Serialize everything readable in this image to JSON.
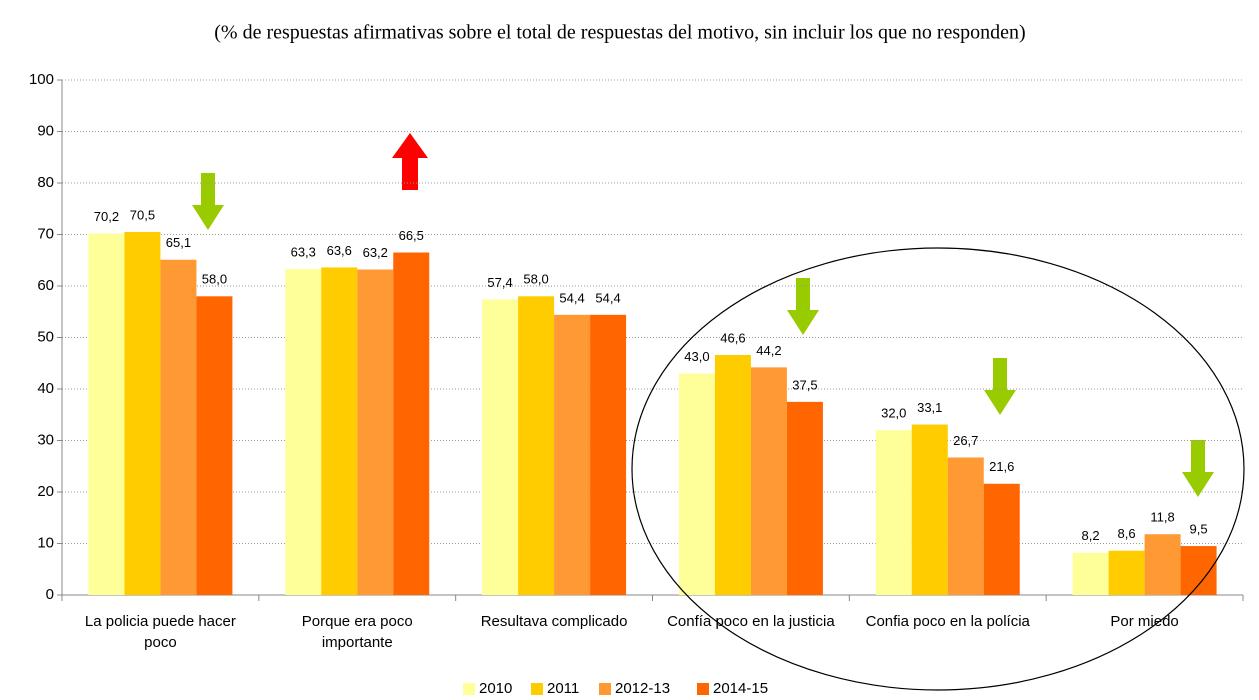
{
  "chart_data": {
    "type": "bar",
    "title": "(% de respuestas afirmativas sobre el total de respuestas del motivo, sin incluir los que no responden)",
    "categories": [
      "La policia puede hacer poco",
      "Porque era poco importante",
      "Resultava complicado",
      "Confía poco en la justicia",
      "Confia poco en la polícia",
      "Por miedo"
    ],
    "series": [
      {
        "name": "2010",
        "color": "#ffff99",
        "values": [
          70.2,
          63.3,
          57.4,
          43.0,
          32.0,
          8.2
        ],
        "value_labels": [
          "70,2",
          "63,3",
          "57,4",
          "43,0",
          "32,0",
          "8,2"
        ]
      },
      {
        "name": "2011",
        "color": "#ffcc00",
        "values": [
          70.5,
          63.6,
          58.0,
          46.6,
          33.1,
          8.6
        ],
        "value_labels": [
          "70,5",
          "63,6",
          "58,0",
          "46,6",
          "33,1",
          "8,6"
        ]
      },
      {
        "name": "2012-13",
        "color": "#ff9933",
        "values": [
          65.1,
          63.2,
          54.4,
          44.2,
          26.7,
          11.8
        ],
        "value_labels": [
          "65,1",
          "63,2",
          "54,4",
          "44,2",
          "26,7",
          "11,8"
        ]
      },
      {
        "name": "2014-15",
        "color": "#ff6600",
        "values": [
          58.0,
          66.5,
          54.4,
          37.5,
          21.6,
          9.5
        ],
        "value_labels": [
          "58,0",
          "66,5",
          "54,4",
          "37,5",
          "21,6",
          "9,5"
        ]
      }
    ],
    "ylim": [
      0,
      100
    ],
    "yticks": [
      0,
      10,
      20,
      30,
      40,
      50,
      60,
      70,
      80,
      90,
      100
    ],
    "grid": true,
    "legend": "bottom"
  }
}
